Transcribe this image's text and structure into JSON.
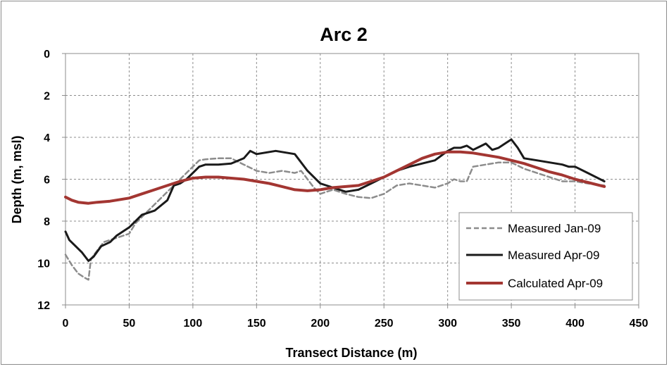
{
  "chart_data": {
    "type": "line",
    "title": "Arc 2",
    "xlabel": "Transect Distance (m)",
    "ylabel": "Depth (m, msl)",
    "xlim": [
      0,
      450
    ],
    "ylim": [
      0,
      12
    ],
    "y_inverted": true,
    "x_ticks": [
      "0",
      "50",
      "100",
      "150",
      "200",
      "250",
      "300",
      "350",
      "400",
      "450"
    ],
    "y_ticks": [
      "0",
      "2",
      "4",
      "6",
      "8",
      "10",
      "12"
    ],
    "grid": true,
    "legend_position": "bottom-right",
    "series": [
      {
        "name": "Measured Jan-09",
        "color": "#8c8c8c",
        "style": "dashed",
        "x": [
          0,
          5,
          10,
          15,
          18,
          20,
          25,
          30,
          40,
          50,
          55,
          60,
          70,
          80,
          90,
          95,
          100,
          105,
          110,
          120,
          130,
          140,
          150,
          160,
          170,
          180,
          185,
          190,
          195,
          200,
          210,
          220,
          230,
          240,
          250,
          260,
          270,
          280,
          290,
          300,
          305,
          310,
          315,
          320,
          330,
          340,
          350,
          360,
          370,
          380,
          390,
          400,
          410,
          423
        ],
        "y": [
          9.6,
          10.1,
          10.5,
          10.7,
          10.8,
          9.8,
          9.4,
          9.0,
          8.8,
          8.6,
          8.1,
          7.8,
          7.2,
          6.6,
          6.0,
          5.7,
          5.4,
          5.1,
          5.05,
          5.0,
          5.0,
          5.3,
          5.6,
          5.7,
          5.6,
          5.7,
          5.6,
          6.0,
          6.4,
          6.7,
          6.5,
          6.7,
          6.85,
          6.9,
          6.7,
          6.3,
          6.2,
          6.3,
          6.4,
          6.2,
          6.0,
          6.1,
          6.1,
          5.4,
          5.3,
          5.2,
          5.2,
          5.5,
          5.7,
          5.9,
          6.1,
          6.1,
          6.2,
          6.3
        ]
      },
      {
        "name": "Measured Apr-09",
        "color": "#1a1a1a",
        "style": "solid",
        "x": [
          0,
          3,
          8,
          13,
          18,
          22,
          28,
          35,
          40,
          50,
          55,
          60,
          70,
          80,
          85,
          90,
          95,
          100,
          105,
          110,
          120,
          130,
          140,
          145,
          150,
          160,
          165,
          170,
          180,
          190,
          200,
          210,
          220,
          230,
          240,
          250,
          260,
          270,
          280,
          290,
          300,
          305,
          310,
          315,
          320,
          325,
          330,
          335,
          340,
          345,
          350,
          355,
          360,
          370,
          380,
          390,
          395,
          400,
          410,
          423
        ],
        "y": [
          8.5,
          8.9,
          9.2,
          9.5,
          9.9,
          9.7,
          9.2,
          9.0,
          8.7,
          8.3,
          8.0,
          7.7,
          7.5,
          7.0,
          6.3,
          6.2,
          6.0,
          5.7,
          5.4,
          5.3,
          5.3,
          5.25,
          5.0,
          4.65,
          4.8,
          4.7,
          4.65,
          4.7,
          4.8,
          5.6,
          6.2,
          6.4,
          6.6,
          6.5,
          6.2,
          5.9,
          5.6,
          5.4,
          5.25,
          5.1,
          4.65,
          4.5,
          4.5,
          4.4,
          4.6,
          4.45,
          4.3,
          4.6,
          4.5,
          4.3,
          4.1,
          4.5,
          5.0,
          5.1,
          5.2,
          5.3,
          5.4,
          5.4,
          5.7,
          6.1
        ]
      },
      {
        "name": "Calculated Apr-09",
        "color": "#a33632",
        "style": "solid",
        "x": [
          0,
          5,
          10,
          18,
          25,
          35,
          50,
          60,
          70,
          80,
          90,
          100,
          110,
          120,
          130,
          140,
          150,
          160,
          170,
          180,
          190,
          200,
          210,
          220,
          230,
          240,
          250,
          260,
          270,
          280,
          290,
          300,
          310,
          320,
          330,
          340,
          350,
          360,
          370,
          380,
          390,
          400,
          410,
          423
        ],
        "y": [
          6.85,
          7.0,
          7.1,
          7.15,
          7.1,
          7.05,
          6.9,
          6.7,
          6.5,
          6.3,
          6.1,
          5.95,
          5.9,
          5.9,
          5.95,
          6.0,
          6.1,
          6.2,
          6.35,
          6.5,
          6.55,
          6.5,
          6.4,
          6.35,
          6.3,
          6.1,
          5.9,
          5.6,
          5.3,
          5.0,
          4.8,
          4.7,
          4.7,
          4.75,
          4.85,
          4.95,
          5.1,
          5.25,
          5.45,
          5.65,
          5.8,
          6.0,
          6.15,
          6.35
        ]
      }
    ]
  }
}
